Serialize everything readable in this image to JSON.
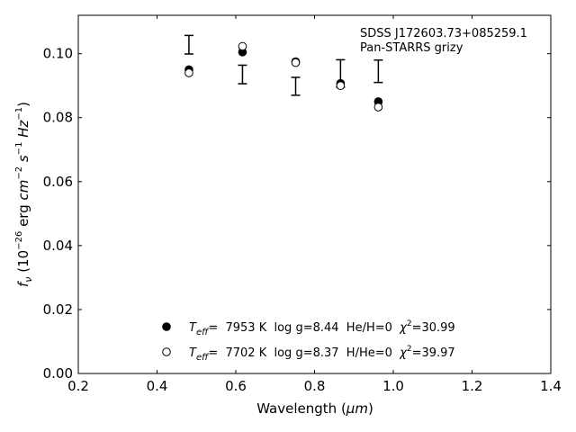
{
  "chart_data": {
    "type": "scatter",
    "title": "",
    "xlabel_main": "Wavelength (",
    "xlabel_unit": "μm",
    "xlabel_close": ")",
    "ylabel_prefix": "f",
    "ylabel_sub": "ν",
    "ylabel_units_a": " (10",
    "ylabel_exp1": "−26",
    "ylabel_units_b": " erg ",
    "ylabel_units_c": "cm",
    "ylabel_exp2": "−2",
    "ylabel_units_d": " s",
    "ylabel_exp3": "−1",
    "ylabel_units_e": " Hz",
    "ylabel_exp4": "−1",
    "ylabel_units_f": ")",
    "xlim": [
      0.2,
      1.4
    ],
    "ylim": [
      0.0,
      0.112
    ],
    "xticks": [
      0.2,
      0.4,
      0.6,
      0.8,
      1.0,
      1.2,
      1.4
    ],
    "xtick_labels": [
      "0.2",
      "0.4",
      "0.6",
      "0.8",
      "1.0",
      "1.2",
      "1.4"
    ],
    "yticks": [
      0.0,
      0.02,
      0.04,
      0.06,
      0.08,
      0.1
    ],
    "ytick_labels": [
      "0.00",
      "0.02",
      "0.04",
      "0.06",
      "0.08",
      "0.10"
    ],
    "annotation_lines": [
      "SDSS J172603.73+085259.1",
      "Pan-STARRS grizy"
    ],
    "observed": {
      "x": [
        0.481,
        0.617,
        0.752,
        0.866,
        0.962
      ],
      "y": [
        0.1028,
        0.0935,
        0.0898,
        0.0938,
        0.0945
      ],
      "yerr": [
        0.0029,
        0.0029,
        0.0028,
        0.0043,
        0.0035
      ]
    },
    "series": [
      {
        "marker": "filled",
        "x": [
          0.481,
          0.617,
          0.752,
          0.866,
          0.962
        ],
        "y": [
          0.095,
          0.1005,
          0.0975,
          0.0907,
          0.085
        ],
        "legend": {
          "t": "T",
          "sub": "eff",
          "rest": "=  7953 K  log g=8.44  He/H=0  ",
          "chi": "χ",
          "sup": "2",
          "val": "=30.99"
        }
      },
      {
        "marker": "open",
        "x": [
          0.481,
          0.617,
          0.752,
          0.866,
          0.962
        ],
        "y": [
          0.094,
          0.1023,
          0.0972,
          0.09,
          0.0833
        ],
        "legend": {
          "t": "T",
          "sub": "eff",
          "rest": "=  7702 K  log g=8.37  H/He=0  ",
          "chi": "χ",
          "sup": "2",
          "val": "=39.97"
        }
      }
    ],
    "legend_position": "lower-center",
    "grid": false
  }
}
